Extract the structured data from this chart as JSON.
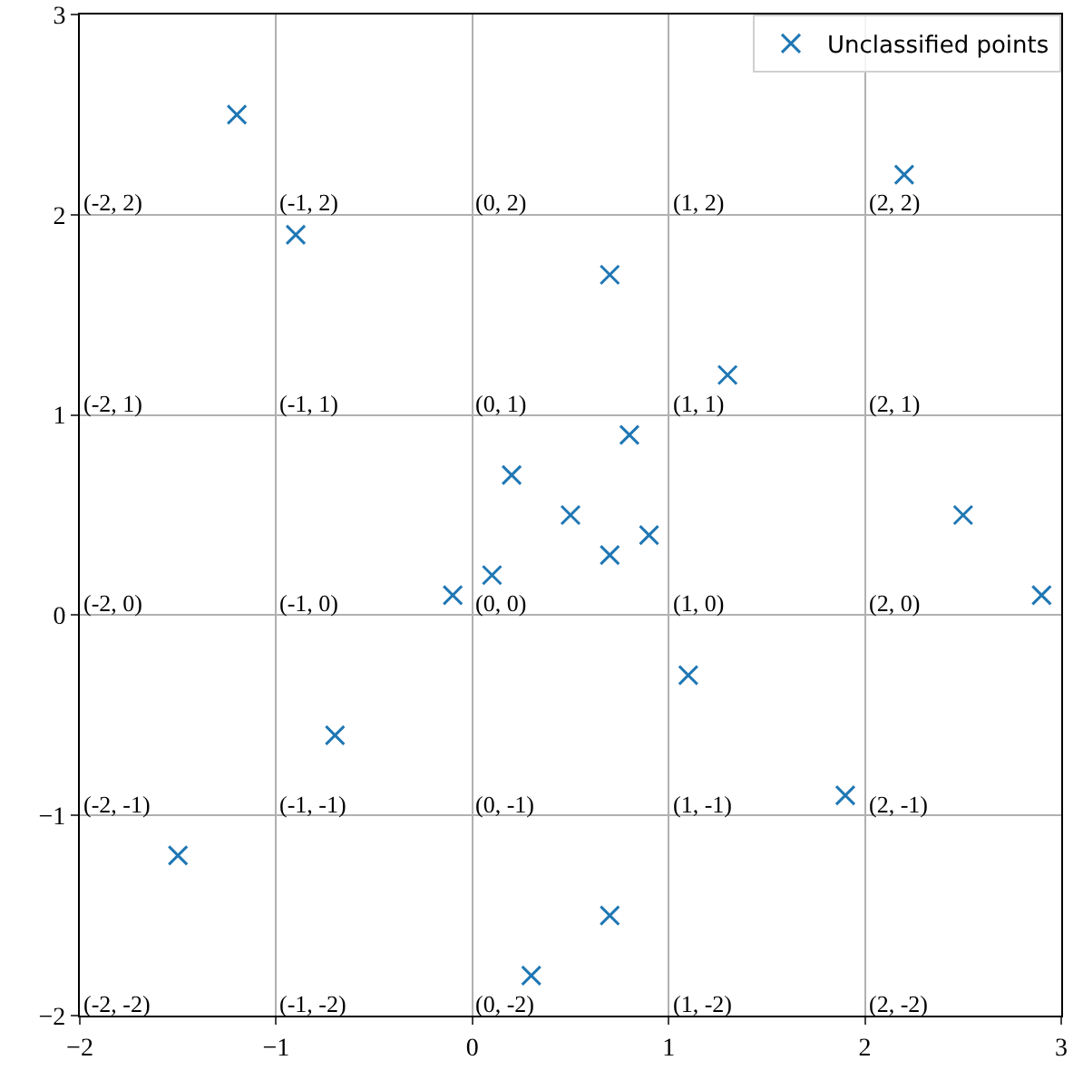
{
  "chart_data": {
    "type": "scatter",
    "x": [
      -1.2,
      -0.9,
      2.2,
      0.7,
      1.3,
      0.8,
      0.2,
      0.5,
      0.9,
      0.7,
      0.1,
      -0.1,
      2.5,
      2.9,
      1.1,
      -0.7,
      1.9,
      -1.5,
      0.7,
      0.3
    ],
    "series": [
      {
        "name": "Unclassified points",
        "color": "#1f77b4",
        "values": [
          2.5,
          1.9,
          2.2,
          1.7,
          1.2,
          0.9,
          0.7,
          0.5,
          0.4,
          0.3,
          0.2,
          0.1,
          0.5,
          0.1,
          -0.3,
          -0.6,
          -0.9,
          -1.2,
          -1.5,
          -1.8
        ]
      }
    ],
    "xlim": [
      -2,
      3
    ],
    "ylim": [
      -2,
      3
    ],
    "xticks": [
      {
        "value": -2,
        "label": "−2"
      },
      {
        "value": -1,
        "label": "−1"
      },
      0,
      1,
      2,
      3
    ],
    "yticks": [
      {
        "value": -2,
        "label": "−2"
      },
      {
        "value": -1,
        "label": "−1"
      },
      0,
      1,
      2,
      3
    ],
    "grid": true,
    "legend": "top right",
    "marker": "cross",
    "annotations": [
      "(-2, -2)",
      "(-2, -1)",
      "(-2, 0)",
      "(-2, 1)",
      "(-2, 2)",
      "(-1, -2)",
      "(-1, -1)",
      "(-1, 0)",
      "(-1, 1)",
      "(-1, 2)",
      "(0, -2)",
      "(0, -1)",
      "(0, 0)",
      "(0, 1)",
      "(0, 2)",
      "(1, -2)",
      "(1, -1)",
      "(1, 0)",
      "(1, 1)",
      "(1, 2)",
      "(2, -2)",
      "(2, -1)",
      "(2, 0)",
      "(2, 1)",
      "(2, 2)"
    ]
  }
}
